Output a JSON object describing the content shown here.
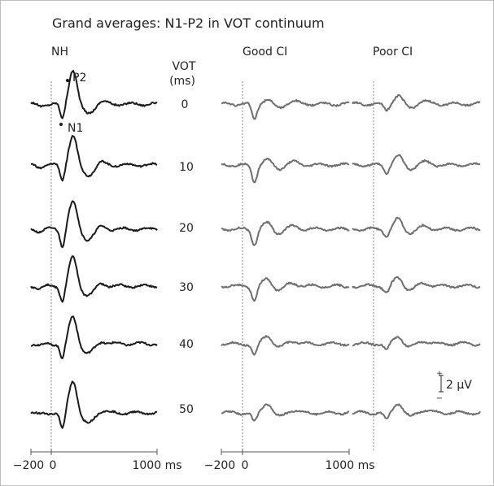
{
  "chart_data": {
    "type": "line",
    "title": "Grand averages: N1-P2 in VOT continuum",
    "panels": [
      {
        "name": "NH",
        "color": "#1a1a1a"
      },
      {
        "name": "Good CI",
        "color": "#6e6e6e"
      },
      {
        "name": "Poor CI",
        "color": "#6e6e6e"
      }
    ],
    "row_axis_label_line1": "VOT",
    "row_axis_label_line2": "(ms)",
    "vot_values": [
      "0",
      "10",
      "20",
      "30",
      "40",
      "50"
    ],
    "peak_labels": {
      "p2": "P2",
      "n1": "N1"
    },
    "scale_bar_label": "2 μV",
    "scale_bar_plus": "+",
    "scale_bar_minus": "−",
    "x_axis": {
      "range_ms": [
        -200,
        1000
      ],
      "nh_ticks": [
        "−200",
        "0",
        "1000 ms"
      ],
      "ci_ticks": [
        "−200",
        "0",
        "1000 ms"
      ]
    },
    "nh_waveform": {
      "n1_latency_ms": 100,
      "p2_latency_ms": 200,
      "n1_amplitude_uv": [
        -2.0,
        -2.0,
        -2.2,
        -2.0,
        -2.0,
        -2.2
      ],
      "p2_amplitude_uv": [
        4.5,
        3.8,
        3.6,
        3.7,
        3.6,
        4.2
      ],
      "after_trough_uv": [
        -1.2,
        -1.3,
        -1.3,
        -1.2,
        -1.3,
        -1.4
      ]
    },
    "good_ci_waveform": {
      "n1_latency_ms": 110,
      "n1_amplitude_uv": [
        -2.0,
        -2.2,
        -2.0,
        -1.8,
        -1.5,
        -1.2
      ],
      "p2_amplitude_uv": [
        0.6,
        0.7,
        0.8,
        0.9,
        1.1,
        1.3
      ]
    },
    "poor_ci_waveform": {
      "n1_latency_ms": 120,
      "n1_amplitude_uv": [
        -0.8,
        -1.0,
        -0.9,
        -0.9,
        -0.8,
        -0.9
      ],
      "p2_amplitude_uv": [
        1.1,
        1.2,
        1.3,
        1.1,
        1.0,
        1.3
      ]
    }
  }
}
